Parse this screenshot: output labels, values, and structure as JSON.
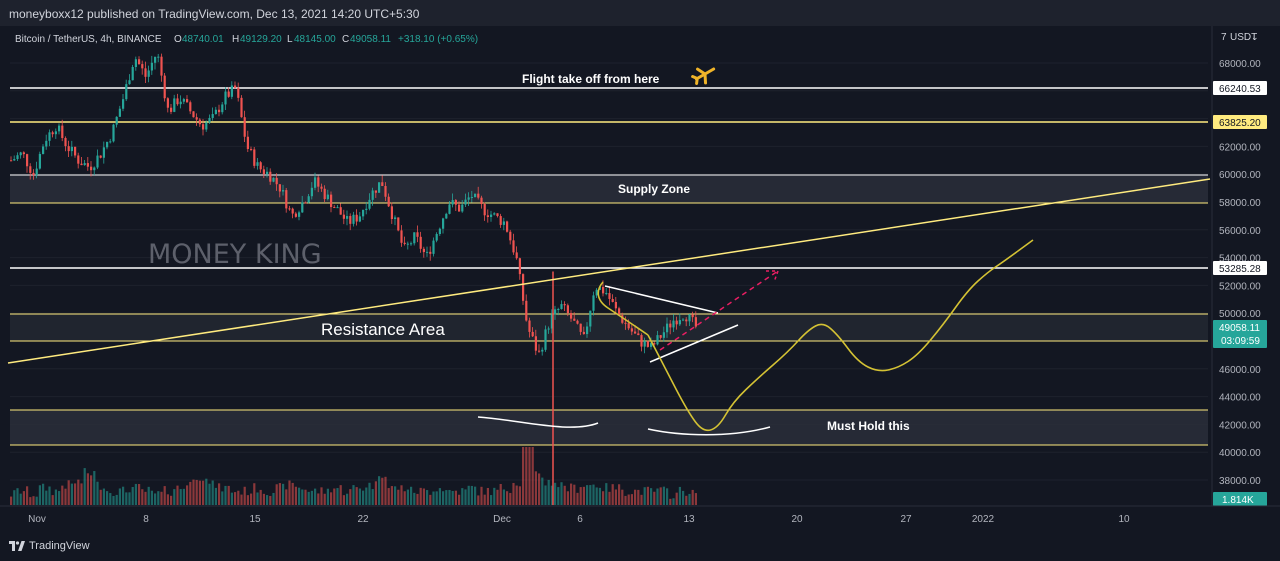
{
  "header": {
    "published": "moneyboxx12 published on TradingView.com, Dec 13, 2021 14:20 UTC+5:30"
  },
  "legend": {
    "symbol": "Bitcoin / TetherUS, 4h, BINANCE",
    "o_label": "O",
    "o": "48740.01",
    "h_label": "H",
    "h": "49129.20",
    "l_label": "L",
    "l": "48145.00",
    "c_label": "C",
    "c": "49058.11",
    "change": "+318.10 (+0.65%)"
  },
  "price_axis": {
    "currency_button": "USDT",
    "ticks": [
      "68000.00",
      "66000.00",
      "64000.00",
      "62000.00",
      "60000.00",
      "58000.00",
      "56000.00",
      "54000.00",
      "52000.00",
      "50000.00",
      "48000.00",
      "46000.00",
      "44000.00",
      "42000.00",
      "40000.00",
      "38000.00"
    ],
    "badges": [
      {
        "text": "66240.53",
        "color": "#ffffff"
      },
      {
        "text": "63825.20",
        "color": "#ffeb7f"
      },
      {
        "text": "53285.28",
        "color": "#ffffff"
      }
    ],
    "current_price": "49058.11",
    "countdown": "03:09:59",
    "volume_value": "1.814K"
  },
  "time_axis": {
    "labels": [
      "Nov",
      "8",
      "15",
      "22",
      "Dec",
      "6",
      "13",
      "20",
      "27",
      "2022",
      "10"
    ]
  },
  "annotations": {
    "flight": "Flight take off from here",
    "supply": "Supply Zone",
    "resistance": "Resistance Area",
    "must_hold": "Must Hold this",
    "watermark": "MONEY KING"
  },
  "brand": {
    "footer": "TradingView"
  },
  "colors": {
    "background": "#131722",
    "up": "#26a69a",
    "down": "#ef5350",
    "horizontal_white": "#ffffff",
    "horizontal_yellow": "#ffeb7f",
    "projection": "#d4c234",
    "pink_arrow": "#e91e63"
  },
  "chart_data": {
    "type": "candlestick",
    "title": "Bitcoin / TetherUS, 4h, BINANCE",
    "y_range": [
      37000,
      71000
    ],
    "x_labels": [
      "Nov",
      "8",
      "15",
      "22",
      "Dec",
      "6",
      "13",
      "20",
      "27",
      "2022",
      "10"
    ],
    "key_levels": [
      66240.53,
      63825.2,
      53285.28
    ],
    "zones": [
      {
        "name": "Supply Zone",
        "from": 58000,
        "to": 60000
      },
      {
        "name": "Resistance Area",
        "from": 48000,
        "to": 50000
      },
      {
        "name": "Must Hold this",
        "from": 40500,
        "to": 43000
      }
    ],
    "close_path": [
      61000,
      61500,
      60000,
      62500,
      63500,
      62000,
      61000,
      60500,
      61500,
      63000,
      65500,
      68500,
      67000,
      68800,
      64500,
      65500,
      64500,
      63500,
      64000,
      65500,
      66200,
      62000,
      60500,
      60000,
      59000,
      57000,
      58000,
      59500,
      58500,
      57500,
      56500,
      57000,
      58500,
      59500,
      57000,
      54500,
      55500,
      54000,
      56000,
      58000,
      57500,
      58500,
      57500,
      57000,
      56500,
      54000,
      49000,
      47000,
      49500,
      50500,
      49500,
      48000,
      52000,
      51500,
      50000,
      49000,
      48000,
      47500,
      48500,
      49500,
      50000,
      49000
    ],
    "volume_path": [
      2,
      3,
      2,
      4,
      3,
      5,
      6,
      9,
      5,
      3,
      3,
      4,
      3,
      2,
      3,
      4,
      6,
      8,
      5,
      4,
      3,
      3,
      4,
      3,
      4,
      5,
      4,
      3,
      3,
      4,
      3,
      4,
      5,
      9,
      4,
      4,
      3,
      3,
      4,
      3,
      3,
      4,
      3,
      3,
      4,
      6,
      20,
      8,
      6,
      5,
      4,
      5,
      5,
      4,
      4,
      3,
      3,
      3,
      3,
      2,
      3,
      2
    ],
    "projection_path": [
      [
        648,
        335
      ],
      [
        665,
        368
      ],
      [
        688,
        412
      ],
      [
        703,
        432
      ],
      [
        718,
        428
      ],
      [
        733,
        402
      ],
      [
        758,
        378
      ],
      [
        788,
        352
      ],
      [
        808,
        330
      ],
      [
        823,
        322
      ],
      [
        838,
        335
      ],
      [
        858,
        362
      ],
      [
        878,
        372
      ],
      [
        898,
        368
      ],
      [
        918,
        355
      ],
      [
        943,
        325
      ],
      [
        968,
        290
      ],
      [
        988,
        272
      ],
      [
        1003,
        262
      ],
      [
        1033,
        240
      ]
    ]
  }
}
